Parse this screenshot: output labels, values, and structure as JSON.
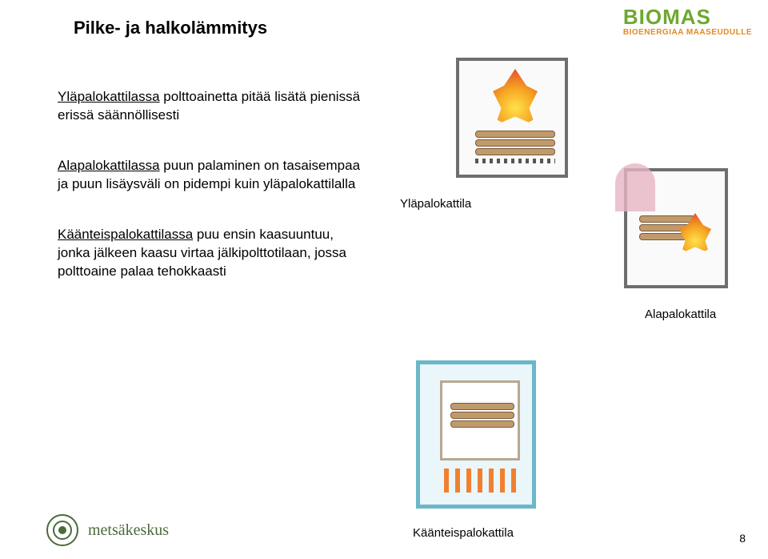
{
  "header": {
    "title": "Pilke- ja halkolämmitys"
  },
  "logo": {
    "main_text": "BIOMAS",
    "sub_text": "BIOENERGIAA MAASEUDULLE",
    "main_color": "#6ea82f",
    "sub_color": "#e5891f"
  },
  "paragraphs": [
    {
      "underlined": "Yläpalokattilassa",
      "rest": " polttoainetta pitää lisätä pienissä erissä säännöllisesti"
    },
    {
      "underlined": "Alapalokattilassa",
      "rest": " puun palaminen on tasaisempaa ja puun lisäysväli on pidempi kuin yläpalokattilalla"
    },
    {
      "underlined": "Käänteispalokattilassa",
      "rest": " puu ensin kaasuuntuu, jonka jälkeen kaasu virtaa jälkipolttotilaan, jossa polttoaine palaa tehokkaasti"
    }
  ],
  "captions": {
    "top": "Yläpalokattila",
    "right": "Alapalokattila",
    "bottom": "Käänteispalokattila"
  },
  "footer": {
    "logo_text": "metsäkeskus",
    "logo_color": "#4a6b3a"
  },
  "page_number": "8",
  "diagram_colors": {
    "flame_inner": "#ffe24a",
    "flame_mid": "#f6a623",
    "flame_outer": "#e5532a",
    "boiler_border": "#6e6e6e",
    "boiler_bg": "#fafafa",
    "water_jacket_border": "#6bb7c9",
    "water_jacket_bg": "#eaf6f9",
    "log_fill": "#c19a6b",
    "log_border": "#7a5a3a",
    "smoke": "#e7b5c4",
    "coil": "#f08030"
  }
}
